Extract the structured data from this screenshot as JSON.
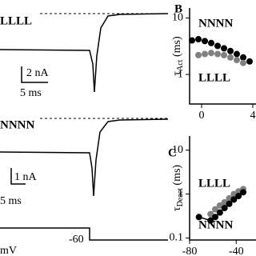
{
  "figure": {
    "trace_top": {
      "label": "LLLL",
      "scale_current": "2 nA",
      "scale_time": "5 ms"
    },
    "trace_bottom": {
      "label": "NNNN",
      "scale_current": "1 nA",
      "scale_time": "5 ms"
    },
    "voltage": {
      "level": "-60",
      "unit": "mV"
    }
  },
  "chart_data": [
    {
      "type": "scatter",
      "title": "B",
      "ylabel": "τ",
      "ylabel_sub": "Act",
      "ylabel_unit": " (ms)",
      "log_y": true,
      "xlim": [
        -0.94,
        4.25
      ],
      "ylim": [
        0.3,
        15
      ],
      "xticks": [
        0,
        4
      ],
      "yticks": [
        1,
        10
      ],
      "connect": false,
      "series": [
        {
          "name": "NNNN",
          "color": "#000000",
          "x": [
            -0.75,
            -0.25,
            0.25,
            0.75,
            1.25,
            1.75,
            2.25,
            2.75,
            3.25,
            3.75
          ],
          "values": [
            4.0,
            4.2,
            3.9,
            3.6,
            3.2,
            2.9,
            2.6,
            2.3,
            2.0,
            1.7
          ]
        },
        {
          "name": "LLLL",
          "color": "#808080",
          "x": [
            -0.25,
            0.25,
            0.75,
            1.25,
            1.75,
            2.25,
            2.75,
            3.25
          ],
          "values": [
            2.2,
            2.3,
            2.4,
            2.3,
            2.2,
            2.0,
            1.8,
            1.6
          ]
        }
      ]
    },
    {
      "type": "scatter",
      "title": "C",
      "ylabel": "τ",
      "ylabel_sub": "Deact",
      "ylabel_unit": " (ms)",
      "log_y": true,
      "xlim": [
        -80,
        -23
      ],
      "ylim": [
        0.09,
        21
      ],
      "xticks": [
        -80,
        -40
      ],
      "yticks": [
        0.1,
        1,
        10
      ],
      "connect": true,
      "series": [
        {
          "name": "LLLL",
          "color": "#808080",
          "x": [
            -62,
            -58,
            -54,
            -50,
            -46,
            -42,
            -38,
            -34
          ],
          "values": [
            0.35,
            0.45,
            0.55,
            0.65,
            0.8,
            1.0,
            1.15,
            1.3
          ]
        },
        {
          "name": "NNNN",
          "color": "#000000",
          "x": [
            -72,
            -62,
            -58,
            -54,
            -50,
            -46,
            -42,
            -38,
            -34
          ],
          "values": [
            0.3,
            0.25,
            0.3,
            0.38,
            0.48,
            0.6,
            0.75,
            0.9,
            1.1
          ]
        }
      ]
    }
  ]
}
